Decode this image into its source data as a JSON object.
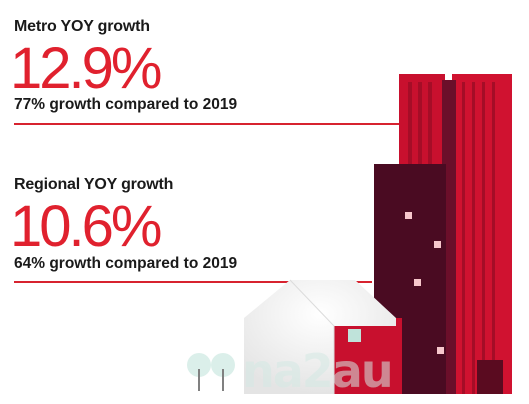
{
  "metro": {
    "label": "Metro YOY growth",
    "value": "12.9%",
    "subtitle": "77% growth compared to 2019"
  },
  "regional": {
    "label": "Regional YOY growth",
    "value": "10.6%",
    "subtitle": "64% growth compared to 2019"
  },
  "watermark": {
    "text": "na2au"
  },
  "colors": {
    "accent_red": "#e0212e",
    "dark_maroon": "#4a0b22",
    "building_red": "#c8102e",
    "mint": "#bfe3da"
  }
}
